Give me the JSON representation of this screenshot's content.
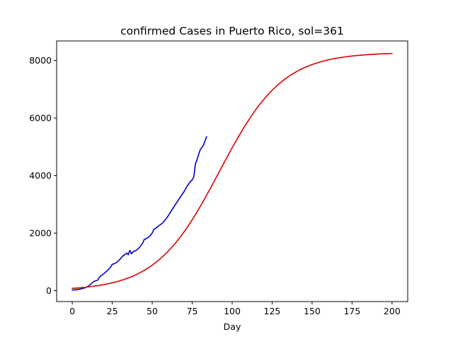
{
  "chart_data": {
    "type": "line",
    "title": "confirmed Cases in Puerto Rico, sol=361",
    "xlabel": "Day",
    "ylabel": "",
    "xlim": [
      -9.8,
      209.8
    ],
    "ylim": [
      -380,
      8680
    ],
    "xticks": [
      0,
      25,
      50,
      75,
      100,
      125,
      150,
      175,
      200
    ],
    "yticks": [
      0,
      2000,
      4000,
      6000,
      8000
    ],
    "grid": false,
    "legend": "none",
    "series": [
      {
        "color": "#0000cc",
        "x": [
          0,
          2,
          4,
          6,
          8,
          10,
          12,
          13,
          14,
          16,
          17,
          18,
          20,
          22,
          24,
          25,
          26,
          28,
          30,
          32,
          33,
          34,
          35,
          36,
          37,
          38,
          40,
          42,
          44,
          45,
          46,
          48,
          50,
          51,
          52,
          54,
          56,
          58,
          60,
          62,
          64,
          66,
          68,
          70,
          72,
          74,
          75,
          76,
          77,
          78,
          80,
          82,
          83,
          84
        ],
        "y": [
          20,
          30,
          45,
          70,
          100,
          150,
          250,
          300,
          330,
          370,
          470,
          520,
          600,
          700,
          820,
          920,
          930,
          990,
          1100,
          1230,
          1250,
          1310,
          1250,
          1400,
          1280,
          1350,
          1400,
          1500,
          1650,
          1780,
          1800,
          1870,
          2000,
          2130,
          2160,
          2250,
          2330,
          2450,
          2600,
          2780,
          2950,
          3120,
          3290,
          3450,
          3650,
          3800,
          3850,
          3950,
          4400,
          4550,
          4900,
          5050,
          5200,
          5350
        ]
      },
      {
        "color": "#dd0000",
        "model": "logistic",
        "K": 8280,
        "r": 0.0505,
        "t0": 92,
        "offset": 0,
        "x_range": [
          0,
          200
        ]
      }
    ]
  }
}
